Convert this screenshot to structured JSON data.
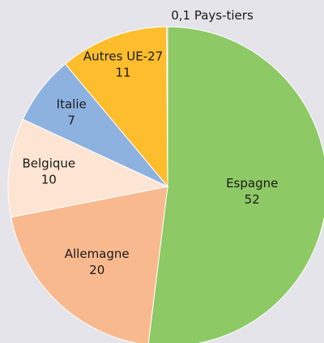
{
  "chart_data": {
    "type": "pie",
    "categories": [
      "Espagne",
      "Allemagne",
      "Belgique",
      "Italie",
      "Autres UE-27",
      "Pays-tiers"
    ],
    "values": [
      52,
      20,
      10,
      7,
      11,
      0.1
    ],
    "value_labels": [
      "52",
      "20",
      "10",
      "7",
      "11",
      "0,1"
    ],
    "colors": [
      "#8dc965",
      "#f9b98f",
      "#fde4d3",
      "#8db2e0",
      "#fdbd2c",
      "#e06030"
    ]
  }
}
